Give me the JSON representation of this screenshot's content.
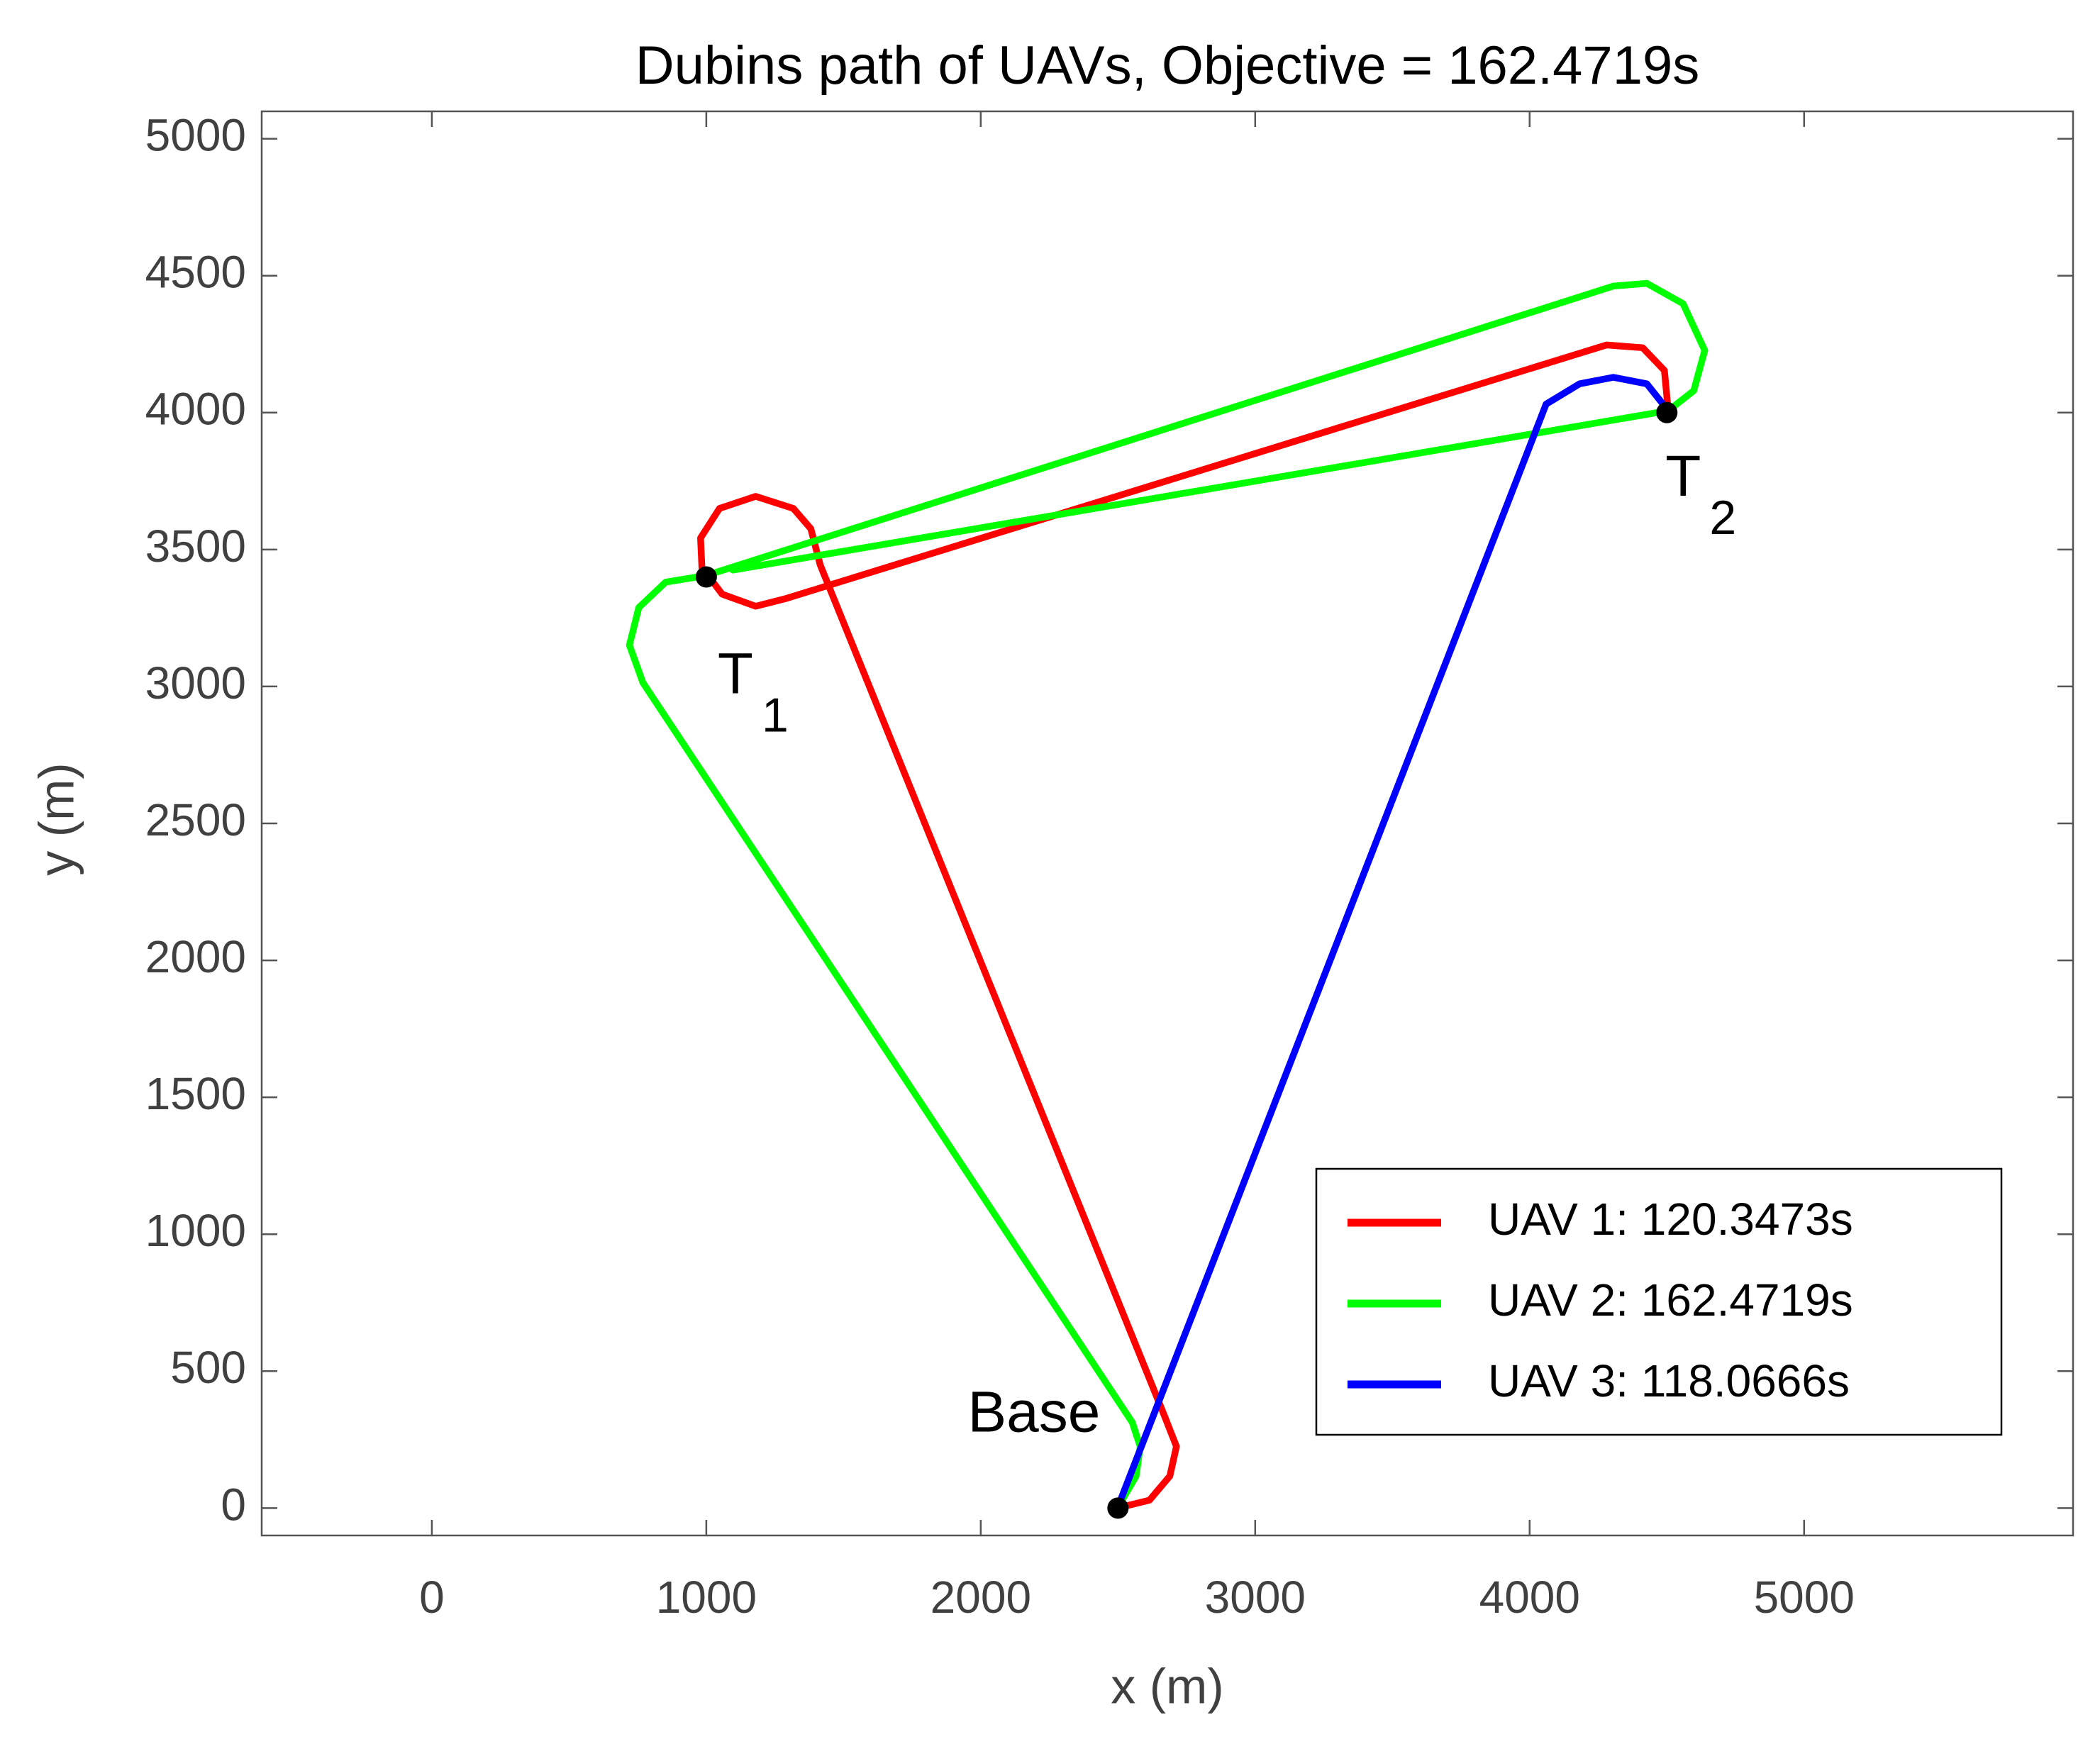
{
  "chart_data": {
    "type": "line",
    "title": "Dubins path of UAVs, Objective = 162.4719s",
    "xlabel": "x (m)",
    "ylabel": "y (m)",
    "xlim": [
      -620,
      5980
    ],
    "ylim": [
      -100,
      5100
    ],
    "xticks": [
      0,
      1000,
      2000,
      3000,
      4000,
      5000
    ],
    "yticks": [
      0,
      500,
      1000,
      1500,
      2000,
      2500,
      3000,
      3500,
      4000,
      4500,
      5000
    ],
    "grid": false,
    "legend_position": "lower-right",
    "series": [
      {
        "name": "UAV 1: 120.3473s",
        "color": "#ff0000",
        "x": [
          2498,
          2615,
          2689,
          2713,
          2669,
          1415,
          1381,
          1317,
          1180,
          1048,
          979,
          984,
          1058,
          1180,
          1293,
          4280,
          4412,
          4491,
          4505
        ],
        "y": [
          0,
          29,
          117,
          225,
          338,
          3444,
          3576,
          3650,
          3694,
          3650,
          3542,
          3434,
          3337,
          3293,
          3322,
          4247,
          4237,
          4154,
          4007
        ]
      },
      {
        "name": "UAV 2: 162.4719s",
        "color": "#00ff00",
        "x": [
          2498,
          2566,
          2581,
          2552,
          769,
          720,
          754,
          852,
          999,
          4305,
          4427,
          4559,
          4638,
          4598,
          4505,
          1097
        ],
        "y": [
          0,
          117,
          225,
          313,
          3014,
          3151,
          3288,
          3381,
          3405,
          4462,
          4472,
          4398,
          4227,
          4080,
          4007,
          3425
        ]
      },
      {
        "name": "UAV 3: 118.0666s",
        "color": "#0000ff",
        "x": [
          2498,
          4060,
          4182,
          4305,
          4427,
          4505
        ],
        "y": [
          0,
          4031,
          4105,
          4129,
          4105,
          4007
        ]
      }
    ],
    "annotations": [
      {
        "text": "T",
        "subscript": "1",
        "x": 1000,
        "y": 3400
      },
      {
        "text": "T",
        "subscript": "2",
        "x": 4500,
        "y": 4000
      },
      {
        "text": "Base",
        "x": 2500,
        "y": 0
      }
    ]
  }
}
